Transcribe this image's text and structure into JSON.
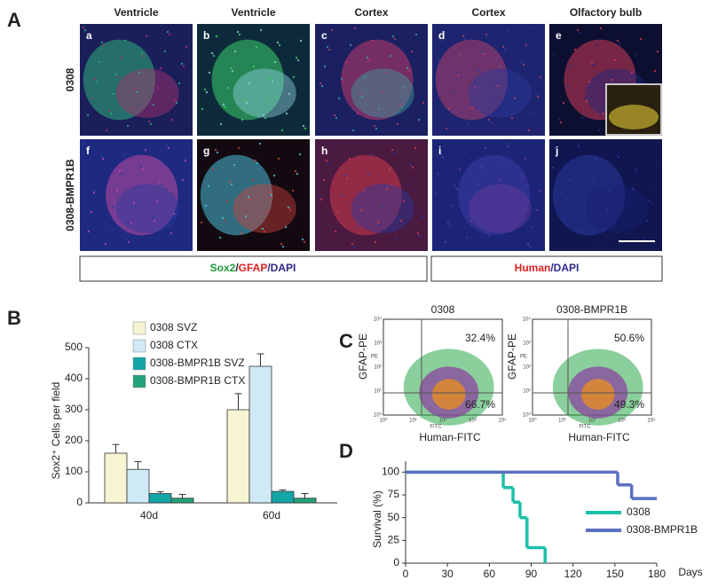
{
  "panel_labels": [
    "A",
    "B",
    "C",
    "D"
  ],
  "panel_a": {
    "columns": [
      "Ventricle",
      "Ventricle",
      "Cortex",
      "Cortex",
      "Olfactory bulb"
    ],
    "rows": [
      "0308",
      "0308-BMPR1B"
    ],
    "image_labels": [
      "a",
      "b",
      "c",
      "d",
      "e",
      "f",
      "g",
      "h",
      "i",
      "j"
    ],
    "stain_left": [
      "Sox2",
      "/",
      "GFAP",
      "/DAPI"
    ],
    "stain_right": [
      "Human",
      "/DAPI"
    ]
  },
  "panel_c": {
    "y_label": "GFAP-PE",
    "x_label": "Human-FITC",
    "x_tiny": "FITC",
    "y_tiny": "PE",
    "axis_ticks": [
      "10⁰",
      "10¹",
      "10²",
      "10³",
      "10⁴"
    ],
    "plots": [
      {
        "title": "0308",
        "upper": "32.4%",
        "lower": "66.7%"
      },
      {
        "title": "0308-BMPR1B",
        "upper": "50.6%",
        "lower": "49.3%"
      }
    ]
  },
  "chart_data": [
    {
      "type": "bar",
      "y_label": "Sox2⁺ Cells per field",
      "categories": [
        "40d",
        "60d"
      ],
      "series": [
        {
          "name": "0308 SVZ",
          "color": "#f6f4d2",
          "values": [
            160,
            300
          ],
          "errors": [
            28,
            52
          ]
        },
        {
          "name": "0308 CTX",
          "color": "#cfe9f6",
          "values": [
            108,
            440
          ],
          "errors": [
            25,
            40
          ]
        },
        {
          "name": "0308-BMPR1B SVZ",
          "color": "#14a5a8",
          "values": [
            30,
            37
          ],
          "errors": [
            6,
            5
          ]
        },
        {
          "name": "0308-BMPR1B CTX",
          "color": "#22a27a",
          "values": [
            15,
            15
          ],
          "errors": [
            12,
            15
          ]
        }
      ],
      "ylim": [
        0,
        500
      ],
      "yticks": [
        0,
        100,
        200,
        300,
        400,
        500
      ]
    },
    {
      "type": "line",
      "step": true,
      "x_label": "Days",
      "y_label": "Survival (%)",
      "series": [
        {
          "name": "0308",
          "color": "#1cc0a8",
          "x": [
            0,
            70,
            77,
            82,
            87,
            100
          ],
          "values": [
            100,
            83,
            67,
            50,
            17,
            0
          ]
        },
        {
          "name": "0308-BMPR1B",
          "color": "#5b6fc0",
          "x": [
            0,
            152,
            162,
            180
          ],
          "values": [
            100,
            86,
            71,
            71
          ]
        }
      ],
      "xlim": [
        0,
        180
      ],
      "xticks": [
        0,
        30,
        60,
        90,
        120,
        150,
        180
      ],
      "ylim": [
        0,
        112
      ],
      "yticks": [
        0,
        25,
        50,
        75,
        100
      ]
    }
  ]
}
